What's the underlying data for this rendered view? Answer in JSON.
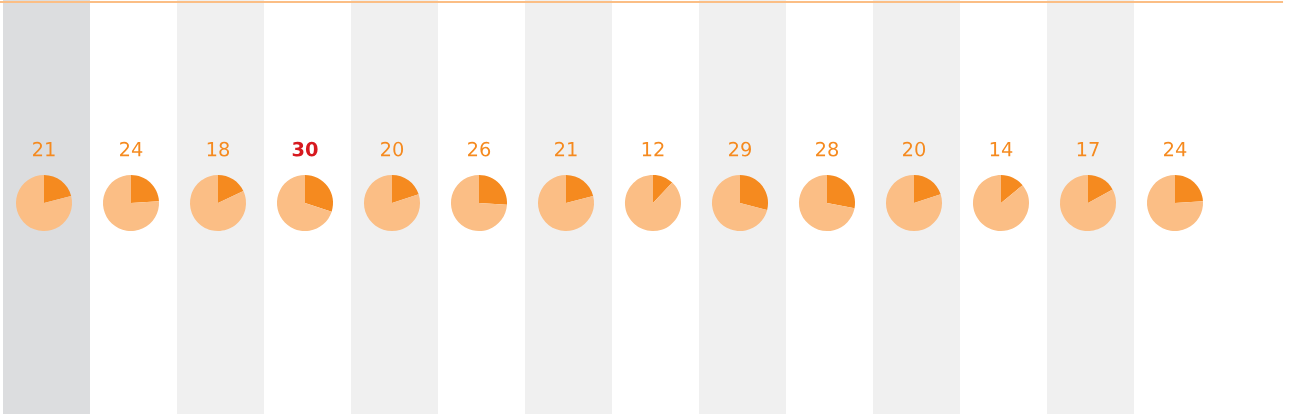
{
  "chart_data": [
    {
      "type": "pie",
      "categories": [
        null,
        null
      ],
      "values": [
        21,
        79
      ],
      "colors": [
        "#f58a1f",
        "#fbbe85"
      ],
      "value_labels": [
        "21",
        null
      ]
    },
    {
      "type": "pie",
      "categories": [
        null,
        null
      ],
      "values": [
        24,
        76
      ],
      "colors": [
        "#f58a1f",
        "#fbbe85"
      ],
      "value_labels": [
        "24",
        null
      ]
    },
    {
      "type": "pie",
      "categories": [
        null,
        null
      ],
      "values": [
        18,
        82
      ],
      "colors": [
        "#f58a1f",
        "#fbbe85"
      ],
      "value_labels": [
        "18",
        null
      ]
    },
    {
      "type": "pie",
      "categories": [
        null,
        null
      ],
      "values": [
        30,
        70
      ],
      "colors": [
        "#f58a1f",
        "#fbbe85"
      ],
      "value_labels": [
        "30",
        null
      ]
    },
    {
      "type": "pie",
      "categories": [
        null,
        null
      ],
      "values": [
        20,
        80
      ],
      "colors": [
        "#f58a1f",
        "#fbbe85"
      ],
      "value_labels": [
        "20",
        null
      ]
    },
    {
      "type": "pie",
      "categories": [
        null,
        null
      ],
      "values": [
        26,
        74
      ],
      "colors": [
        "#f58a1f",
        "#fbbe85"
      ],
      "value_labels": [
        "26",
        null
      ]
    },
    {
      "type": "pie",
      "categories": [
        null,
        null
      ],
      "values": [
        21,
        79
      ],
      "colors": [
        "#f58a1f",
        "#fbbe85"
      ],
      "value_labels": [
        "21",
        null
      ]
    },
    {
      "type": "pie",
      "categories": [
        null,
        null
      ],
      "values": [
        12,
        88
      ],
      "colors": [
        "#f58a1f",
        "#fbbe85"
      ],
      "value_labels": [
        "12",
        null
      ]
    },
    {
      "type": "pie",
      "categories": [
        null,
        null
      ],
      "values": [
        29,
        71
      ],
      "colors": [
        "#f58a1f",
        "#fbbe85"
      ],
      "value_labels": [
        "29",
        null
      ]
    },
    {
      "type": "pie",
      "categories": [
        null,
        null
      ],
      "values": [
        28,
        72
      ],
      "colors": [
        "#f58a1f",
        "#fbbe85"
      ],
      "value_labels": [
        "28",
        null
      ]
    },
    {
      "type": "pie",
      "categories": [
        null,
        null
      ],
      "values": [
        20,
        80
      ],
      "colors": [
        "#f58a1f",
        "#fbbe85"
      ],
      "value_labels": [
        "20",
        null
      ]
    },
    {
      "type": "pie",
      "categories": [
        null,
        null
      ],
      "values": [
        14,
        86
      ],
      "colors": [
        "#f58a1f",
        "#fbbe85"
      ],
      "value_labels": [
        "14",
        null
      ]
    },
    {
      "type": "pie",
      "categories": [
        null,
        null
      ],
      "values": [
        17,
        83
      ],
      "colors": [
        "#f58a1f",
        "#fbbe85"
      ],
      "value_labels": [
        "17",
        null
      ]
    },
    {
      "type": "pie",
      "categories": [
        null,
        null
      ],
      "values": [
        24,
        76
      ],
      "colors": [
        "#f58a1f",
        "#fbbe85"
      ],
      "value_labels": [
        "24",
        null
      ]
    }
  ]
}
